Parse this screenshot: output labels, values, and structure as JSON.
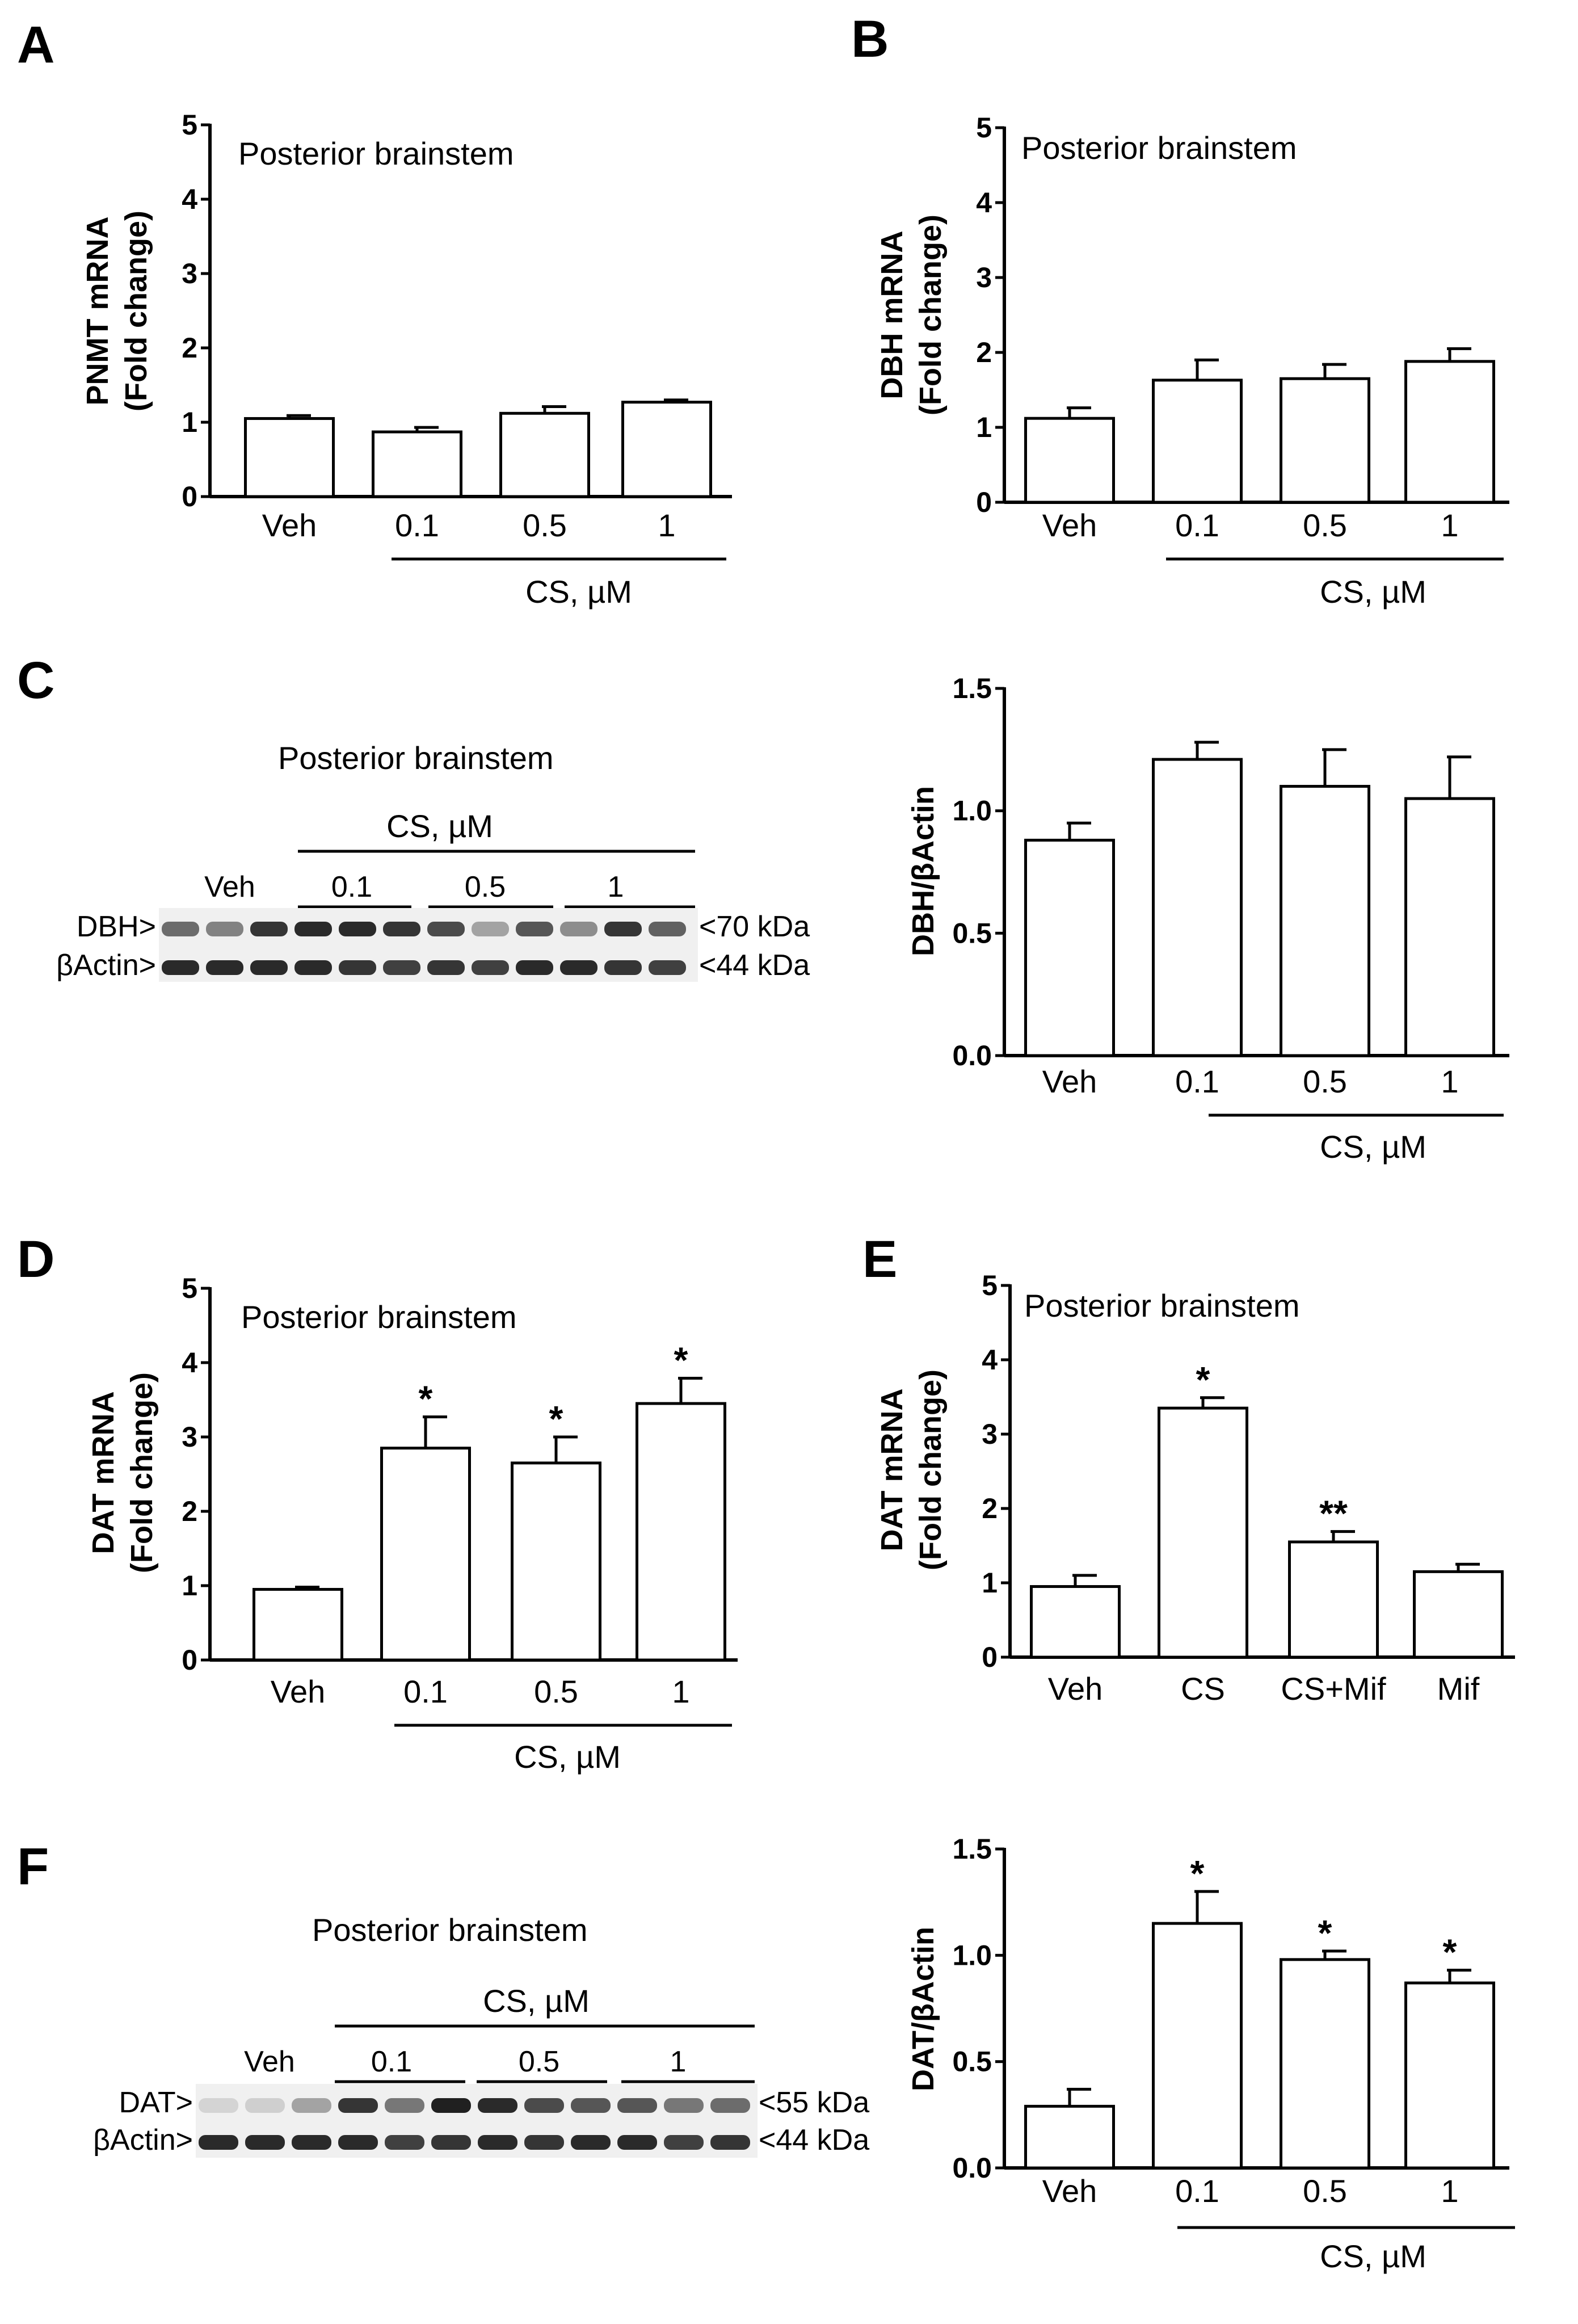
{
  "figure": {
    "panels": {
      "A": "A",
      "B": "B",
      "C": "C",
      "D": "D",
      "E": "E",
      "F": "F"
    },
    "blots": {
      "C": {
        "title": "Posterior brainstem",
        "group_label": "CS, µM",
        "veh_label": "Veh",
        "lane_groups": [
          "0.1",
          "0.5",
          "1"
        ],
        "row_labels": [
          "DBH>",
          "βActin>"
        ],
        "sizes": [
          "<70 kDa",
          "<44 kDa"
        ]
      },
      "F": {
        "title": "Posterior brainstem",
        "group_label": "CS, µM",
        "veh_label": "Veh",
        "lane_groups": [
          "0.1",
          "0.5",
          "1"
        ],
        "row_labels": [
          "DAT>",
          "βActin>"
        ],
        "sizes": [
          "<55 kDa",
          "<44 kDa"
        ]
      }
    }
  },
  "chart_data": [
    {
      "id": "A",
      "type": "bar",
      "title": "Posterior brainstem",
      "ylabel": [
        "PNMT mRNA",
        "(Fold change)"
      ],
      "categories": [
        "Veh",
        "0.1",
        "0.5",
        "1"
      ],
      "values": [
        1.05,
        0.87,
        1.12,
        1.27
      ],
      "errors": [
        0.04,
        0.06,
        0.09,
        0.03
      ],
      "annotations": [
        "",
        "",
        "",
        ""
      ],
      "ylim": [
        0,
        5
      ],
      "yticks": [
        "0",
        "1",
        "2",
        "3",
        "4",
        "5"
      ],
      "group_label": "CS, µM"
    },
    {
      "id": "B",
      "type": "bar",
      "title": "Posterior brainstem",
      "ylabel": [
        "DBH mRNA",
        "(Fold change)"
      ],
      "categories": [
        "Veh",
        "0.1",
        "0.5",
        "1"
      ],
      "values": [
        1.12,
        1.63,
        1.65,
        1.88
      ],
      "errors": [
        0.14,
        0.27,
        0.19,
        0.17
      ],
      "annotations": [
        "",
        "",
        "",
        ""
      ],
      "ylim": [
        0,
        5
      ],
      "yticks": [
        "0",
        "1",
        "2",
        "3",
        "4",
        "5"
      ],
      "group_label": "CS, µM"
    },
    {
      "id": "C",
      "type": "bar",
      "title": "",
      "ylabel": [
        "DBH/βActin"
      ],
      "categories": [
        "Veh",
        "0.1",
        "0.5",
        "1"
      ],
      "values": [
        0.88,
        1.21,
        1.1,
        1.05
      ],
      "errors": [
        0.07,
        0.07,
        0.15,
        0.17
      ],
      "annotations": [
        "",
        "",
        "",
        ""
      ],
      "ylim": [
        0,
        1.5
      ],
      "yticks": [
        "0.0",
        "0.5",
        "1.0",
        "1.5"
      ],
      "group_label": "CS, µM"
    },
    {
      "id": "D",
      "type": "bar",
      "title": "Posterior brainstem",
      "ylabel": [
        "DAT mRNA",
        "(Fold change)"
      ],
      "categories": [
        "Veh",
        "0.1",
        "0.5",
        "1"
      ],
      "values": [
        0.95,
        2.85,
        2.65,
        3.45
      ],
      "errors": [
        0.03,
        0.42,
        0.35,
        0.34
      ],
      "annotations": [
        "",
        "*",
        "*",
        "*"
      ],
      "ylim": [
        0,
        5
      ],
      "yticks": [
        "0",
        "1",
        "2",
        "3",
        "4",
        "5"
      ],
      "group_label": "CS, µM"
    },
    {
      "id": "E",
      "type": "bar",
      "title": "Posterior brainstem",
      "ylabel": [
        "DAT mRNA",
        "(Fold change)"
      ],
      "categories": [
        "Veh",
        "CS",
        "CS+Mif",
        "Mif"
      ],
      "values": [
        0.95,
        3.35,
        1.55,
        1.15
      ],
      "errors": [
        0.15,
        0.14,
        0.14,
        0.1
      ],
      "annotations": [
        "",
        "*",
        "**",
        ""
      ],
      "ylim": [
        0,
        5
      ],
      "yticks": [
        "0",
        "1",
        "2",
        "3",
        "4",
        "5"
      ],
      "group_label": ""
    },
    {
      "id": "F",
      "type": "bar",
      "title": "",
      "ylabel": [
        "DAT/βActin"
      ],
      "categories": [
        "Veh",
        "0.1",
        "0.5",
        "1"
      ],
      "values": [
        0.29,
        1.15,
        0.98,
        0.87
      ],
      "errors": [
        0.08,
        0.15,
        0.04,
        0.06
      ],
      "annotations": [
        "",
        "*",
        "*",
        "*"
      ],
      "ylim": [
        0,
        1.5
      ],
      "yticks": [
        "0.0",
        "0.5",
        "1.0",
        "1.5"
      ],
      "group_label": "CS, µM"
    }
  ]
}
